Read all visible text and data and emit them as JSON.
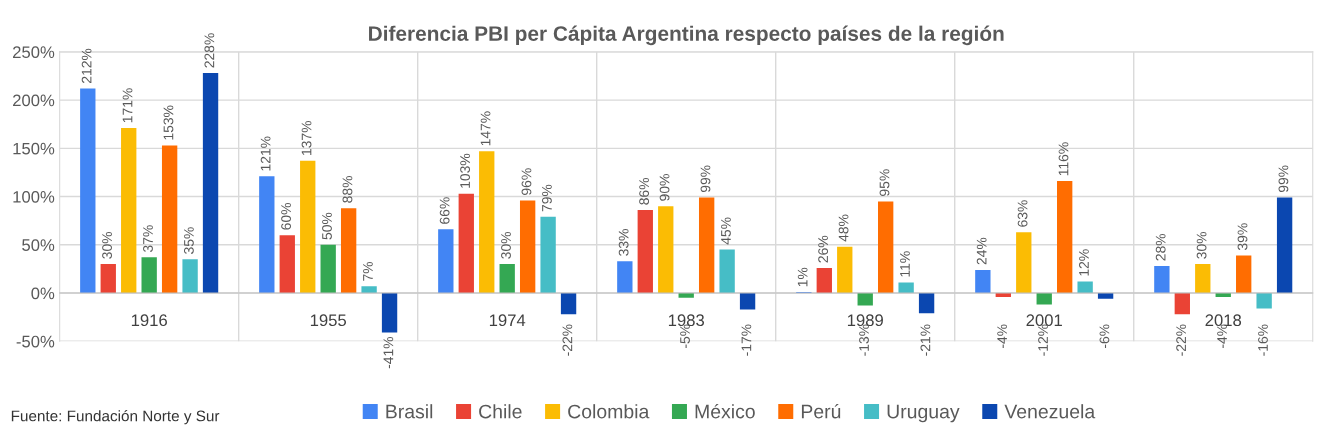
{
  "chart_data": {
    "type": "bar",
    "title": "Diferencia PBI per Cápita Argentina respecto países de la región",
    "categories": [
      "1916",
      "1955",
      "1974",
      "1983",
      "1989",
      "2001",
      "2018"
    ],
    "series": [
      {
        "name": "Brasil",
        "color": "#4285f4",
        "values": [
          212,
          121,
          66,
          33,
          1,
          24,
          28
        ],
        "value_labels": [
          "212%",
          "121%",
          "66%",
          "33%",
          "1%",
          "24%",
          "28%"
        ]
      },
      {
        "name": "Chile",
        "color": "#ea4335",
        "values": [
          30,
          60,
          103,
          86,
          26,
          -4,
          -22
        ],
        "value_labels": [
          "30%",
          "60%",
          "103%",
          "86%",
          "26%",
          "-4%",
          "-22%"
        ]
      },
      {
        "name": "Colombia",
        "color": "#fbbc04",
        "values": [
          171,
          137,
          147,
          90,
          48,
          63,
          30
        ],
        "value_labels": [
          "171%",
          "137%",
          "147%",
          "90%",
          "48%",
          "63%",
          "30%"
        ]
      },
      {
        "name": "México",
        "color": "#34a853",
        "values": [
          37,
          50,
          30,
          -5,
          -13,
          -12,
          -4
        ],
        "value_labels": [
          "37%",
          "50%",
          "30%",
          "-5%",
          "-13%",
          "-12%",
          "-4%"
        ]
      },
      {
        "name": "Perú",
        "color": "#ff6d01",
        "values": [
          153,
          88,
          96,
          99,
          95,
          116,
          39
        ],
        "value_labels": [
          "153%",
          "88%",
          "96%",
          "99%",
          "95%",
          "116%",
          "39%"
        ]
      },
      {
        "name": "Uruguay",
        "color": "#46bdc6",
        "values": [
          35,
          7,
          79,
          45,
          11,
          12,
          -16
        ],
        "value_labels": [
          "35%",
          "7%",
          "79%",
          "45%",
          "11%",
          "12%",
          "-16%"
        ]
      },
      {
        "name": "Venezuela",
        "color": "#0b47b0",
        "values": [
          228,
          -41,
          -22,
          -17,
          -21,
          -6,
          99
        ],
        "value_labels": [
          "228%",
          "-41%",
          "-22%",
          "-17%",
          "-21%",
          "-6%",
          "99%"
        ]
      }
    ],
    "ylim": [
      -50,
      250
    ],
    "yticks": [
      {
        "value": -50,
        "label": "-50%"
      },
      {
        "value": 0,
        "label": "0%"
      },
      {
        "value": 50,
        "label": "50%"
      },
      {
        "value": 100,
        "label": "100%"
      },
      {
        "value": 150,
        "label": "150%"
      },
      {
        "value": 200,
        "label": "200%"
      },
      {
        "value": 250,
        "label": "250%"
      }
    ],
    "grid": true,
    "legend": "bottom",
    "annotations": [
      "Fuente: Fundación Norte y Sur"
    ]
  }
}
